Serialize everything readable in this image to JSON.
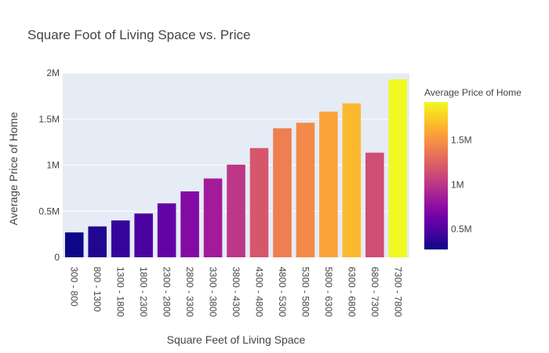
{
  "chart_data": {
    "type": "bar",
    "title": "Square Foot of Living Space vs. Price",
    "xlabel": "Square Feet of Living Space",
    "ylabel": "Average Price of Home",
    "categories": [
      "300 - 800",
      "800 - 1300",
      "1300 - 1800",
      "1800 - 2300",
      "2300 - 2800",
      "2800 - 3300",
      "3300 - 3800",
      "3800 - 4300",
      "4300 - 4800",
      "4800 - 5300",
      "5300 - 5800",
      "5800 - 6300",
      "6300 - 6800",
      "6800 - 7300",
      "7300 - 7800"
    ],
    "values": [
      270000,
      335000,
      400000,
      475000,
      585000,
      715000,
      855000,
      1005000,
      1185000,
      1400000,
      1460000,
      1580000,
      1670000,
      1135000,
      1930000
    ],
    "ylim": [
      0,
      2000000
    ],
    "yticks": [
      0,
      500000,
      1000000,
      1500000,
      2000000
    ],
    "ytick_labels": [
      "0",
      "0.5M",
      "1M",
      "1.5M",
      "2M"
    ],
    "grid": true,
    "colorbar": {
      "title": "Average Price of Home",
      "range": [
        270000,
        1930000
      ],
      "ticks": [
        500000,
        1000000,
        1500000
      ],
      "tick_labels": [
        "0.5M",
        "1M",
        "1.5M"
      ],
      "colorscale": [
        "#0d0887",
        "#46039f",
        "#7201a8",
        "#9c179e",
        "#bd3786",
        "#d8576b",
        "#ed7953",
        "#fb9f3a",
        "#fdca26",
        "#f0f921"
      ]
    },
    "colors": {
      "plot_bg": "#e5ecf6",
      "grid": "#ffffff",
      "text": "#444444"
    }
  }
}
